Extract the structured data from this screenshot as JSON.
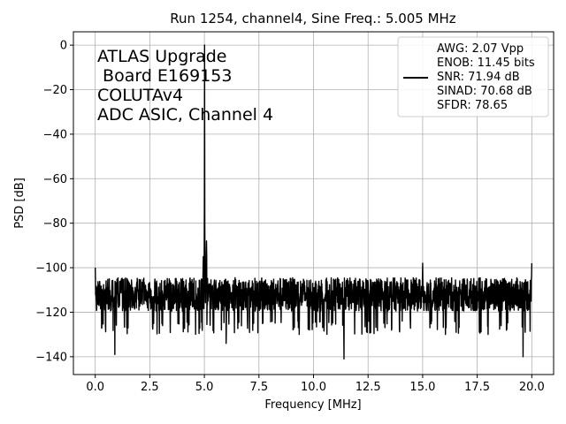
{
  "chart_data": {
    "type": "line",
    "title": "Run 1254, channel4, Sine Freq.: 5.005 MHz",
    "xlabel": "Frequency [MHz]",
    "ylabel": "PSD [dB]",
    "xlim": [
      -1.0,
      21.0
    ],
    "ylim": [
      -148,
      6
    ],
    "grid": true,
    "legend_position": "top-right",
    "x_ticks": [
      0.0,
      2.5,
      5.0,
      7.5,
      10.0,
      12.5,
      15.0,
      17.5,
      20.0
    ],
    "x_tick_labels": [
      "0.0",
      "2.5",
      "5.0",
      "7.5",
      "10.0",
      "12.5",
      "15.0",
      "17.5",
      "20.0"
    ],
    "y_ticks": [
      0,
      -20,
      -40,
      -60,
      -80,
      -100,
      -120,
      -140
    ],
    "y_tick_labels": [
      "0",
      "−20",
      "−40",
      "−60",
      "−80",
      "−100",
      "−120",
      "−140"
    ],
    "annotation_lines": [
      "ATLAS Upgrade",
      " Board E169153",
      "COLUTAv4",
      "ADC ASIC, Channel 4"
    ],
    "legend_entries": [
      "AWG: 2.07 Vpp",
      "ENOB: 11.45 bits",
      "SNR: 71.94 dB",
      "SINAD: 70.68 dB",
      "SFDR: 78.65"
    ],
    "series_color": "#000000",
    "series": [
      {
        "x_range": [
          0.0,
          20.0
        ],
        "noise_floor_mean_db": -112,
        "noise_floor_band_db": [
          -124,
          -104
        ],
        "peaks": [
          {
            "x": 5.005,
            "y": 0
          },
          {
            "x": 5.1,
            "y": -88
          },
          {
            "x": 4.95,
            "y": -95
          },
          {
            "x": 15.0,
            "y": -98
          },
          {
            "x": 0.0,
            "y": -100
          },
          {
            "x": 20.0,
            "y": -98
          }
        ],
        "dips": [
          {
            "x": 0.9,
            "y": -139
          },
          {
            "x": 6.0,
            "y": -134
          },
          {
            "x": 11.4,
            "y": -141
          },
          {
            "x": 19.6,
            "y": -140
          }
        ]
      }
    ]
  },
  "colors": {
    "grid": "#b0b0b0",
    "axes": "#000000",
    "legend_border": "#cccccc"
  }
}
